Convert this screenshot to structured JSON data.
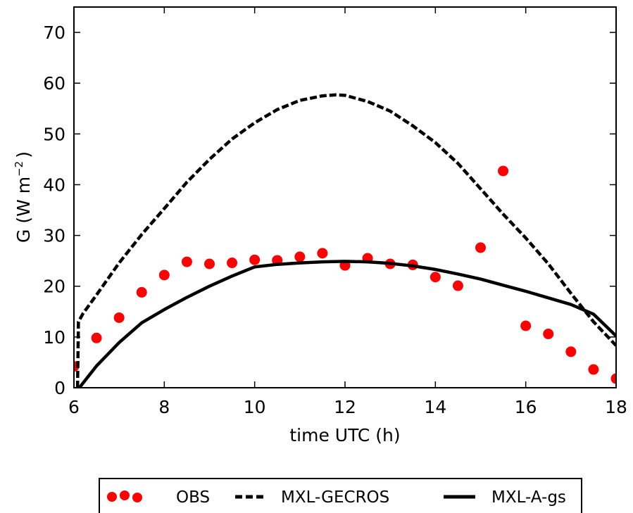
{
  "chart_data": {
    "type": "line",
    "xlabel": "time UTC (h)",
    "ylabel_main": "G (W m",
    "ylabel_sup": "−2",
    "ylabel_close": ")",
    "xlim": [
      6,
      18
    ],
    "ylim": [
      0,
      75
    ],
    "xticks": [
      "6",
      "8",
      "10",
      "12",
      "14",
      "16",
      "18"
    ],
    "yticks": [
      "0",
      "10",
      "20",
      "30",
      "40",
      "50",
      "60",
      "70"
    ],
    "legend_position": "below",
    "series": [
      {
        "name": "OBS",
        "style": "scatter",
        "color": "#ff0000",
        "points": [
          [
            6.0,
            4.2
          ],
          [
            6.5,
            9.8
          ],
          [
            7.0,
            13.8
          ],
          [
            7.5,
            18.8
          ],
          [
            8.0,
            22.2
          ],
          [
            8.5,
            24.8
          ],
          [
            9.0,
            24.4
          ],
          [
            9.5,
            24.6
          ],
          [
            10.0,
            25.2
          ],
          [
            10.5,
            25.1
          ],
          [
            11.0,
            25.8
          ],
          [
            11.5,
            26.5
          ],
          [
            12.0,
            24.1
          ],
          [
            12.5,
            25.5
          ],
          [
            13.0,
            24.4
          ],
          [
            13.5,
            24.2
          ],
          [
            14.0,
            21.8
          ],
          [
            14.5,
            20.1
          ],
          [
            15.0,
            27.6
          ],
          [
            15.5,
            42.7
          ],
          [
            16.0,
            12.2
          ],
          [
            16.5,
            10.6
          ],
          [
            17.0,
            7.1
          ],
          [
            17.5,
            3.6
          ],
          [
            18.0,
            1.8
          ]
        ]
      },
      {
        "name": "MXL-GECROS",
        "style": "dashed",
        "color": "#000000",
        "points": [
          [
            6.08,
            0.0
          ],
          [
            6.1,
            13.0
          ],
          [
            6.2,
            14.6
          ],
          [
            6.5,
            18.3
          ],
          [
            7.0,
            24.6
          ],
          [
            7.5,
            30.2
          ],
          [
            8.0,
            35.3
          ],
          [
            8.5,
            40.5
          ],
          [
            9.0,
            45.0
          ],
          [
            9.5,
            49.0
          ],
          [
            10.0,
            52.2
          ],
          [
            10.5,
            54.8
          ],
          [
            11.0,
            56.6
          ],
          [
            11.5,
            57.5
          ],
          [
            11.8,
            57.7
          ],
          [
            12.0,
            57.6
          ],
          [
            12.5,
            56.4
          ],
          [
            13.0,
            54.5
          ],
          [
            13.5,
            51.6
          ],
          [
            14.0,
            48.3
          ],
          [
            14.5,
            44.2
          ],
          [
            15.0,
            39.2
          ],
          [
            15.5,
            34.2
          ],
          [
            16.0,
            29.5
          ],
          [
            16.5,
            24.4
          ],
          [
            17.0,
            18.6
          ],
          [
            17.5,
            13.0
          ],
          [
            18.0,
            8.3
          ]
        ]
      },
      {
        "name": "MXL-A-gs",
        "style": "solid",
        "color": "#000000",
        "points": [
          [
            6.12,
            0.0
          ],
          [
            6.5,
            4.3
          ],
          [
            7.0,
            8.9
          ],
          [
            7.5,
            12.8
          ],
          [
            8.0,
            15.4
          ],
          [
            8.5,
            17.8
          ],
          [
            9.0,
            20.0
          ],
          [
            9.5,
            22.0
          ],
          [
            10.0,
            23.8
          ],
          [
            10.5,
            24.3
          ],
          [
            11.0,
            24.6
          ],
          [
            11.5,
            24.8
          ],
          [
            12.0,
            24.9
          ],
          [
            12.5,
            24.8
          ],
          [
            13.0,
            24.5
          ],
          [
            13.5,
            24.0
          ],
          [
            14.0,
            23.3
          ],
          [
            14.5,
            22.4
          ],
          [
            15.0,
            21.4
          ],
          [
            15.5,
            20.2
          ],
          [
            16.0,
            19.0
          ],
          [
            16.5,
            17.7
          ],
          [
            17.0,
            16.4
          ],
          [
            17.5,
            14.5
          ],
          [
            18.0,
            10.2
          ]
        ]
      }
    ]
  }
}
